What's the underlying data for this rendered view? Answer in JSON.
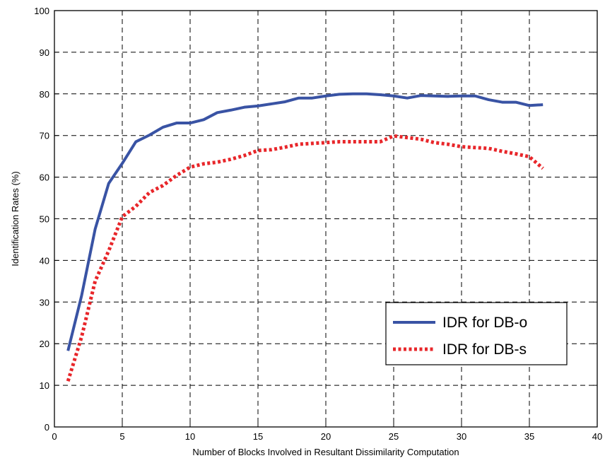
{
  "chart_data": {
    "type": "line",
    "xlabel": "Number of Blocks Involved in Resultant Dissimilarity Computation",
    "ylabel": "Identification Rates (%)",
    "xlim": [
      0,
      40
    ],
    "ylim": [
      0,
      100
    ],
    "xticks": [
      "0",
      "5",
      "10",
      "15",
      "20",
      "25",
      "30",
      "35",
      "40"
    ],
    "yticks": [
      "0",
      "10",
      "20",
      "30",
      "40",
      "50",
      "60",
      "70",
      "80",
      "90",
      "100"
    ],
    "grid": true,
    "legend_position": "lower-right",
    "series": [
      {
        "name": "IDR for DB-o",
        "color": "#3953a4",
        "style": "solid",
        "x": [
          1,
          2,
          3,
          4,
          5,
          6,
          7,
          8,
          9,
          10,
          11,
          12,
          13,
          14,
          15,
          16,
          17,
          18,
          19,
          20,
          21,
          22,
          23,
          24,
          25,
          26,
          27,
          28,
          29,
          30,
          31,
          32,
          33,
          34,
          35,
          36
        ],
        "y": [
          18.3,
          31.5,
          47.5,
          58.5,
          63.3,
          68.5,
          70.1,
          72.0,
          73.0,
          73.0,
          73.8,
          75.5,
          76.1,
          76.8,
          77.1,
          77.6,
          78.1,
          79.0,
          79.0,
          79.5,
          79.9,
          80.0,
          80.0,
          79.8,
          79.5,
          79.0,
          79.6,
          79.5,
          79.4,
          79.5,
          79.5,
          78.6,
          78.0,
          78.0,
          77.2,
          77.4
        ]
      },
      {
        "name": "IDR for DB-s",
        "color": "#e8262a",
        "style": "dotted",
        "x": [
          1,
          2,
          3,
          4,
          5,
          6,
          7,
          8,
          9,
          10,
          11,
          12,
          13,
          14,
          15,
          16,
          17,
          18,
          19,
          20,
          21,
          22,
          23,
          24,
          25,
          26,
          27,
          28,
          29,
          30,
          31,
          32,
          33,
          34,
          35,
          36
        ],
        "y": [
          11.0,
          21.6,
          35.0,
          42.3,
          50.5,
          53.0,
          56.3,
          58.0,
          60.4,
          62.4,
          63.2,
          63.6,
          64.3,
          65.2,
          66.4,
          66.6,
          67.2,
          67.9,
          68.1,
          68.3,
          68.5,
          68.5,
          68.5,
          68.5,
          69.9,
          69.5,
          69.1,
          68.3,
          67.9,
          67.3,
          67.1,
          66.9,
          66.2,
          65.6,
          64.9,
          62.1
        ]
      }
    ]
  }
}
